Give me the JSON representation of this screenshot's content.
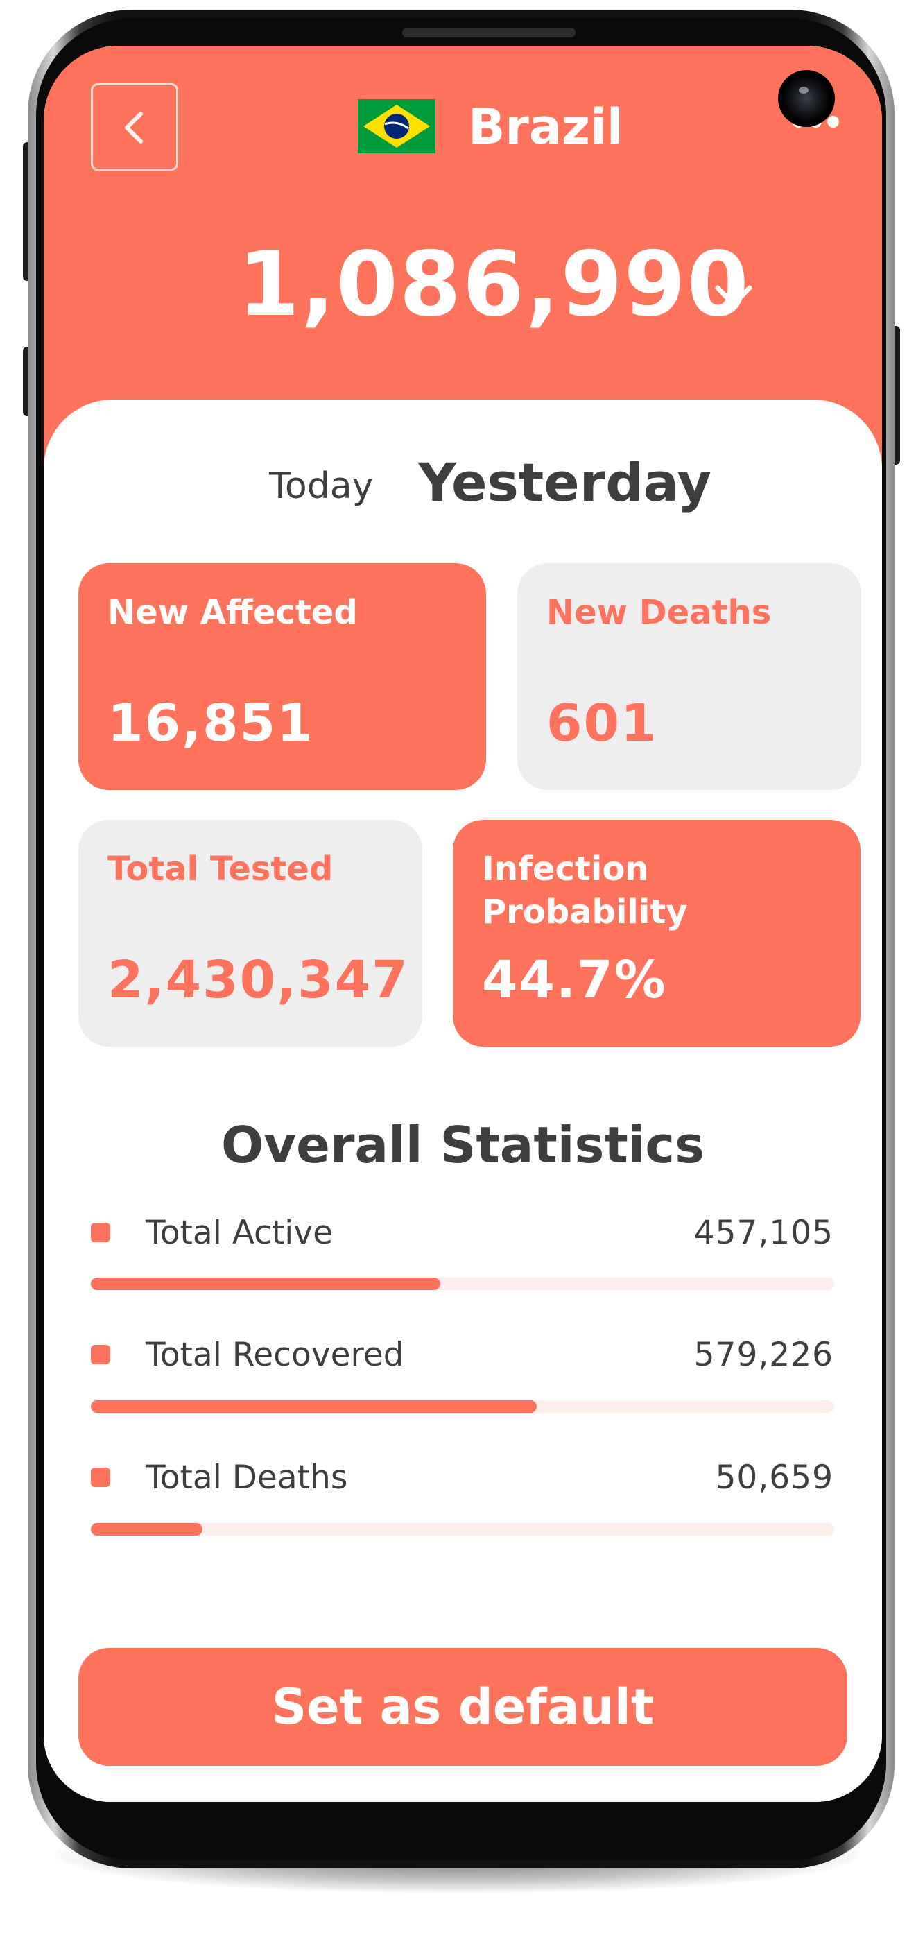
{
  "header": {
    "country": "Brazil",
    "total_cases": "1,086,990"
  },
  "tabs": {
    "today": "Today",
    "yesterday": "Yesterday",
    "selected": "Yesterday"
  },
  "cards": {
    "new_affected": {
      "label": "New Affected",
      "value": "16,851"
    },
    "new_deaths": {
      "label": "New Deaths",
      "value": "601"
    },
    "total_tested": {
      "label": "Total Tested",
      "value": "2,430,347"
    },
    "infection_probability": {
      "label": "Infection\nProbability",
      "value": "44.7%"
    }
  },
  "overall": {
    "title": "Overall Statistics",
    "items": [
      {
        "label": "Total Active",
        "value": "457,105",
        "progress": 0.47
      },
      {
        "label": "Total Recovered",
        "value": "579,226",
        "progress": 0.6
      },
      {
        "label": "Total Deaths",
        "value": "50,659",
        "progress": 0.15
      }
    ]
  },
  "cta": {
    "label": "Set as default"
  },
  "colors": {
    "accent": "#FF735D",
    "card_light": "#EEEEEE",
    "text_dark": "#3E3E3E",
    "track": "#FDEEEC"
  },
  "icons": {
    "back": "chevron-left-icon",
    "flag": "brazil-flag-icon",
    "trend": "arrow-down-icon",
    "more": "more-dots-icon"
  }
}
